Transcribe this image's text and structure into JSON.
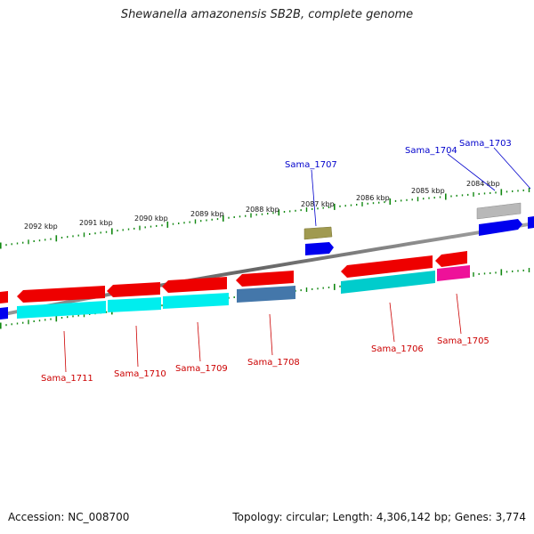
{
  "title": "Shewanella amazonensis SB2B, complete genome",
  "footer": {
    "accession": "Accession: NC_008700",
    "summary": "Topology: circular; Length: 4,306,142 bp; Genes: 3,774"
  },
  "scale_labels": [
    "2092 kbp",
    "2091 kbp",
    "2090 kbp",
    "2089 kbp",
    "2088 kbp",
    "2087 kbp",
    "2086 kbp",
    "2085 kbp",
    "2084 kbp"
  ],
  "gene_labels": {
    "top": [
      "Sama_1707",
      "Sama_1704",
      "Sama_1703"
    ],
    "bottom": [
      "Sama_1711",
      "Sama_1710",
      "Sama_1709",
      "Sama_1708",
      "Sama_1706",
      "Sama_1705"
    ]
  },
  "colors": {
    "forward_label": "#0000cc",
    "reverse_label": "#cc0000",
    "cds_red": "#ee0000",
    "cds_blue": "#0000ee",
    "cyan": "#00cccc",
    "steel": "#4477aa",
    "olive": "#a09a50",
    "gray": "#b8b8b8",
    "magenta": "#ee1199",
    "tick": "#118811",
    "backbone": "#888888"
  }
}
